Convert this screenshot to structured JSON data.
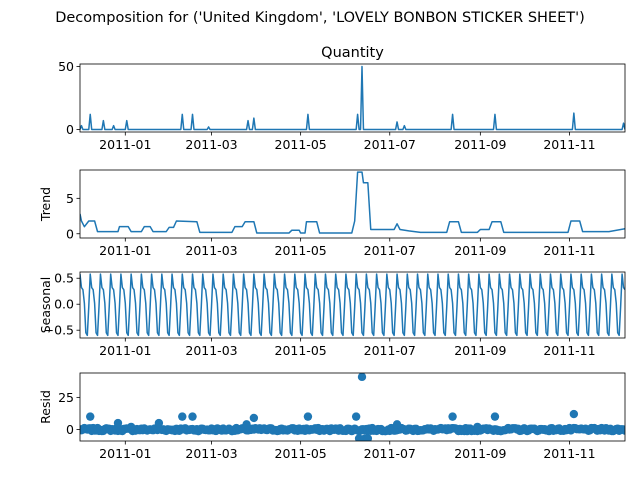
{
  "figure": {
    "suptitle": "Decomposition for ('United Kingdom', 'LOVELY BONBON STICKER SHEET')"
  },
  "chart_data": [
    {
      "type": "line",
      "title": "Quantity",
      "ylabel": "",
      "xlim": [
        "2010-12-01",
        "2011-12-09"
      ],
      "ylim": [
        -2,
        52
      ],
      "yticks": [
        0,
        50
      ],
      "xticks": [
        "2011-01-01",
        "2011-03-01",
        "2011-05-01",
        "2011-07-01",
        "2011-09-01",
        "2011-11-01"
      ],
      "xtick_labels": [
        "2011-01",
        "2011-03",
        "2011-05",
        "2011-07",
        "2011-09",
        "2011-11"
      ],
      "color": "#1f77b4",
      "baseline": 0,
      "spikes": [
        {
          "x": "2010-12-02",
          "y": 3
        },
        {
          "x": "2010-12-08",
          "y": 12
        },
        {
          "x": "2010-12-17",
          "y": 7
        },
        {
          "x": "2010-12-24",
          "y": 3
        },
        {
          "x": "2011-01-02",
          "y": 7
        },
        {
          "x": "2011-02-09",
          "y": 12
        },
        {
          "x": "2011-02-16",
          "y": 12
        },
        {
          "x": "2011-02-27",
          "y": 2
        },
        {
          "x": "2011-03-26",
          "y": 7
        },
        {
          "x": "2011-03-30",
          "y": 9
        },
        {
          "x": "2011-05-06",
          "y": 12
        },
        {
          "x": "2011-06-09",
          "y": 12
        },
        {
          "x": "2011-06-12",
          "y": 50
        },
        {
          "x": "2011-07-06",
          "y": 6
        },
        {
          "x": "2011-07-11",
          "y": 3
        },
        {
          "x": "2011-08-13",
          "y": 12
        },
        {
          "x": "2011-09-11",
          "y": 12
        },
        {
          "x": "2011-11-04",
          "y": 13
        },
        {
          "x": "2011-12-08",
          "y": 5
        }
      ]
    },
    {
      "type": "line",
      "title": "",
      "ylabel": "Trend",
      "xlim": [
        "2010-12-01",
        "2011-12-09"
      ],
      "ylim": [
        -0.6,
        9
      ],
      "yticks": [
        0,
        5
      ],
      "xticks": [
        "2011-01-01",
        "2011-03-01",
        "2011-05-01",
        "2011-07-01",
        "2011-09-01",
        "2011-11-01"
      ],
      "xtick_labels": [
        "2011-01",
        "2011-03",
        "2011-05",
        "2011-07",
        "2011-09",
        "2011-11"
      ],
      "color": "#1f77b4",
      "points": [
        {
          "x": "2010-12-01",
          "y": 2.8
        },
        {
          "x": "2010-12-02",
          "y": 1.8
        },
        {
          "x": "2010-12-04",
          "y": 1.0
        },
        {
          "x": "2010-12-07",
          "y": 1.8
        },
        {
          "x": "2010-12-11",
          "y": 1.8
        },
        {
          "x": "2010-12-13",
          "y": 0.3
        },
        {
          "x": "2010-12-27",
          "y": 0.3
        },
        {
          "x": "2010-12-28",
          "y": 1.0
        },
        {
          "x": "2011-01-03",
          "y": 1.0
        },
        {
          "x": "2011-01-05",
          "y": 0.3
        },
        {
          "x": "2011-01-12",
          "y": 0.3
        },
        {
          "x": "2011-01-14",
          "y": 1.0
        },
        {
          "x": "2011-01-18",
          "y": 1.0
        },
        {
          "x": "2011-01-20",
          "y": 0.3
        },
        {
          "x": "2011-01-29",
          "y": 0.3
        },
        {
          "x": "2011-01-31",
          "y": 0.9
        },
        {
          "x": "2011-02-03",
          "y": 0.9
        },
        {
          "x": "2011-02-05",
          "y": 1.8
        },
        {
          "x": "2011-02-19",
          "y": 1.7
        },
        {
          "x": "2011-02-21",
          "y": 0.2
        },
        {
          "x": "2011-03-15",
          "y": 0.2
        },
        {
          "x": "2011-03-17",
          "y": 1.0
        },
        {
          "x": "2011-03-22",
          "y": 1.0
        },
        {
          "x": "2011-03-24",
          "y": 1.7
        },
        {
          "x": "2011-03-30",
          "y": 1.7
        },
        {
          "x": "2011-04-01",
          "y": 0.1
        },
        {
          "x": "2011-04-23",
          "y": 0.1
        },
        {
          "x": "2011-04-25",
          "y": 0.5
        },
        {
          "x": "2011-04-30",
          "y": 0.5
        },
        {
          "x": "2011-05-01",
          "y": 0.1
        },
        {
          "x": "2011-05-04",
          "y": 0.1
        },
        {
          "x": "2011-05-05",
          "y": 1.7
        },
        {
          "x": "2011-05-12",
          "y": 1.7
        },
        {
          "x": "2011-05-14",
          "y": 0.1
        },
        {
          "x": "2011-06-05",
          "y": 0.1
        },
        {
          "x": "2011-06-07",
          "y": 1.8
        },
        {
          "x": "2011-06-09",
          "y": 8.7
        },
        {
          "x": "2011-06-12",
          "y": 8.7
        },
        {
          "x": "2011-06-13",
          "y": 7.2
        },
        {
          "x": "2011-06-16",
          "y": 7.2
        },
        {
          "x": "2011-06-18",
          "y": 0.6
        },
        {
          "x": "2011-07-04",
          "y": 0.6
        },
        {
          "x": "2011-07-06",
          "y": 1.4
        },
        {
          "x": "2011-07-08",
          "y": 0.6
        },
        {
          "x": "2011-07-14",
          "y": 0.4
        },
        {
          "x": "2011-07-22",
          "y": 0.2
        },
        {
          "x": "2011-08-09",
          "y": 0.2
        },
        {
          "x": "2011-08-11",
          "y": 1.7
        },
        {
          "x": "2011-08-17",
          "y": 1.7
        },
        {
          "x": "2011-08-19",
          "y": 0.2
        },
        {
          "x": "2011-08-30",
          "y": 0.2
        },
        {
          "x": "2011-09-01",
          "y": 0.6
        },
        {
          "x": "2011-09-07",
          "y": 0.6
        },
        {
          "x": "2011-09-09",
          "y": 1.7
        },
        {
          "x": "2011-09-15",
          "y": 1.7
        },
        {
          "x": "2011-09-17",
          "y": 0.2
        },
        {
          "x": "2011-10-31",
          "y": 0.2
        },
        {
          "x": "2011-11-02",
          "y": 1.8
        },
        {
          "x": "2011-11-08",
          "y": 1.8
        },
        {
          "x": "2011-11-10",
          "y": 0.3
        },
        {
          "x": "2011-11-28",
          "y": 0.3
        },
        {
          "x": "2011-12-09",
          "y": 0.7
        }
      ]
    },
    {
      "type": "line",
      "title": "",
      "ylabel": "Seasonal",
      "xlim": [
        "2010-12-01",
        "2011-12-09"
      ],
      "ylim": [
        -0.65,
        0.62
      ],
      "yticks": [
        -0.5,
        0.0,
        0.5
      ],
      "ytick_labels": [
        "−0.5",
        "0.0",
        "0.5"
      ],
      "xticks": [
        "2011-01-01",
        "2011-03-01",
        "2011-05-01",
        "2011-07-01",
        "2011-09-01",
        "2011-11-01"
      ],
      "xtick_labels": [
        "2011-01",
        "2011-03",
        "2011-05",
        "2011-07",
        "2011-09",
        "2011-11"
      ],
      "color": "#1f77b4",
      "period_days": 7,
      "start": "2010-12-01",
      "end": "2011-12-09",
      "weekly_pattern": [
        0.58,
        0.32,
        0.28,
        0.02,
        -0.55,
        -0.6,
        -0.05
      ]
    },
    {
      "type": "scatter",
      "title": "",
      "ylabel": "Resid",
      "xlim": [
        "2010-12-01",
        "2011-12-09"
      ],
      "ylim": [
        -9,
        44
      ],
      "yticks": [
        0,
        25
      ],
      "xticks": [
        "2011-01-01",
        "2011-03-01",
        "2011-05-01",
        "2011-07-01",
        "2011-09-01",
        "2011-11-01"
      ],
      "xtick_labels": [
        "2011-01",
        "2011-03",
        "2011-05",
        "2011-07",
        "2011-09",
        "2011-11"
      ],
      "color": "#1f77b4",
      "baseline": 0,
      "baseline_jitter": 1.2,
      "start": "2010-12-01",
      "end": "2011-12-09",
      "outliers": [
        {
          "x": "2010-12-08",
          "y": 10
        },
        {
          "x": "2010-12-27",
          "y": 5
        },
        {
          "x": "2011-01-05",
          "y": 2
        },
        {
          "x": "2011-01-24",
          "y": 5
        },
        {
          "x": "2011-02-09",
          "y": 10
        },
        {
          "x": "2011-02-16",
          "y": 10
        },
        {
          "x": "2011-03-25",
          "y": 4
        },
        {
          "x": "2011-03-30",
          "y": 9
        },
        {
          "x": "2011-05-06",
          "y": 10
        },
        {
          "x": "2011-06-08",
          "y": 10
        },
        {
          "x": "2011-06-12",
          "y": 41
        },
        {
          "x": "2011-06-10",
          "y": -7
        },
        {
          "x": "2011-06-14",
          "y": -7
        },
        {
          "x": "2011-06-16",
          "y": -7
        },
        {
          "x": "2011-07-06",
          "y": 4
        },
        {
          "x": "2011-08-13",
          "y": 10
        },
        {
          "x": "2011-08-30",
          "y": 2
        },
        {
          "x": "2011-09-11",
          "y": 10
        },
        {
          "x": "2011-11-04",
          "y": 12
        }
      ]
    }
  ]
}
